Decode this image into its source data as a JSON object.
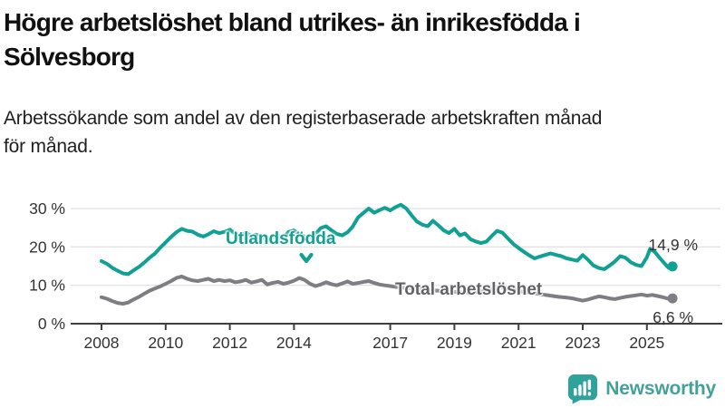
{
  "header": {
    "title_lines": [
      "Högre arbetslöshet bland utrikes- än inrikesfödda i",
      "Sölvesborg"
    ],
    "subtitle_lines": [
      "Arbetssökande som andel av den registerbaserade arbetskraften månad",
      "för månad."
    ]
  },
  "colors": {
    "foreign_line": "#11a094",
    "total_line": "#7d7d82",
    "total_label_text": "#616168",
    "grid": "#d9d9d9",
    "axis": "#3f3f3f",
    "axis_text": "#333333",
    "logo_teal": "#2fa29b"
  },
  "footer": {
    "brand": "Newsworthy"
  },
  "chart_data": {
    "type": "line",
    "title": "Högre arbetslöshet bland utrikes- än inrikesfödda i Sölvesborg",
    "subtitle": "Arbetssökande som andel av den registerbaserade arbetskraften månad för månad.",
    "xlabel": "",
    "ylabel": "",
    "grid": "horizontal",
    "legend_position": "inline-annotations",
    "x_axis": {
      "range": [
        2007.0,
        2027.3
      ],
      "ticks": [
        2008,
        2010,
        2012,
        2014,
        2017,
        2019,
        2021,
        2023,
        2025
      ],
      "labels": [
        "2008",
        "2010",
        "2012",
        "2014",
        "2017",
        "2019",
        "2021",
        "2023",
        "2025"
      ]
    },
    "y_axis": {
      "range": [
        0,
        32
      ],
      "ticks": [
        0,
        10,
        20,
        30
      ],
      "labels": [
        "0 %",
        "10 %",
        "20 %",
        "30 %"
      ]
    },
    "series": [
      {
        "name": "Utlandsfödda",
        "color": "#11a094",
        "end_value": 14.9,
        "end_label": "14,9 %",
        "points": [
          [
            2008.0,
            16.3
          ],
          [
            2008.17,
            15.6
          ],
          [
            2008.33,
            14.6
          ],
          [
            2008.5,
            13.8
          ],
          [
            2008.67,
            13.1
          ],
          [
            2008.83,
            12.9
          ],
          [
            2009.0,
            13.9
          ],
          [
            2009.17,
            14.8
          ],
          [
            2009.33,
            15.9
          ],
          [
            2009.5,
            17.2
          ],
          [
            2009.67,
            18.3
          ],
          [
            2009.83,
            19.8
          ],
          [
            2010.0,
            21.2
          ],
          [
            2010.17,
            22.6
          ],
          [
            2010.33,
            23.8
          ],
          [
            2010.5,
            24.7
          ],
          [
            2010.67,
            24.2
          ],
          [
            2010.83,
            24.0
          ],
          [
            2011.0,
            23.2
          ],
          [
            2011.17,
            22.7
          ],
          [
            2011.33,
            23.3
          ],
          [
            2011.5,
            24.1
          ],
          [
            2011.67,
            23.6
          ],
          [
            2011.83,
            23.9
          ],
          [
            2012.0,
            24.5
          ],
          [
            2012.17,
            23.4
          ],
          [
            2012.33,
            23.0
          ],
          [
            2012.5,
            23.7
          ],
          [
            2012.67,
            22.9
          ],
          [
            2012.83,
            23.2
          ],
          [
            2013.0,
            22.5
          ],
          [
            2013.17,
            22.1
          ],
          [
            2013.33,
            22.4
          ],
          [
            2013.5,
            22.9
          ],
          [
            2013.67,
            22.4
          ],
          [
            2013.83,
            23.9
          ],
          [
            2014.0,
            24.3
          ],
          [
            2014.17,
            23.3
          ],
          [
            2014.33,
            22.7
          ],
          [
            2014.5,
            22.4
          ],
          [
            2014.67,
            23.3
          ],
          [
            2014.83,
            24.9
          ],
          [
            2015.0,
            25.4
          ],
          [
            2015.17,
            24.3
          ],
          [
            2015.33,
            23.4
          ],
          [
            2015.5,
            23.0
          ],
          [
            2015.67,
            23.8
          ],
          [
            2015.83,
            25.3
          ],
          [
            2016.0,
            27.7
          ],
          [
            2016.17,
            28.9
          ],
          [
            2016.33,
            30.0
          ],
          [
            2016.5,
            28.9
          ],
          [
            2016.67,
            29.6
          ],
          [
            2016.83,
            30.2
          ],
          [
            2017.0,
            29.5
          ],
          [
            2017.17,
            30.4
          ],
          [
            2017.33,
            31.0
          ],
          [
            2017.5,
            30.0
          ],
          [
            2017.67,
            28.2
          ],
          [
            2017.83,
            26.6
          ],
          [
            2018.0,
            25.8
          ],
          [
            2018.17,
            25.4
          ],
          [
            2018.33,
            26.8
          ],
          [
            2018.5,
            25.6
          ],
          [
            2018.67,
            24.3
          ],
          [
            2018.83,
            23.6
          ],
          [
            2019.0,
            24.7
          ],
          [
            2019.17,
            23.0
          ],
          [
            2019.33,
            23.5
          ],
          [
            2019.5,
            22.0
          ],
          [
            2019.67,
            21.4
          ],
          [
            2019.83,
            21.0
          ],
          [
            2020.0,
            21.4
          ],
          [
            2020.17,
            22.9
          ],
          [
            2020.33,
            24.2
          ],
          [
            2020.5,
            23.7
          ],
          [
            2020.67,
            22.2
          ],
          [
            2020.83,
            20.8
          ],
          [
            2021.0,
            19.7
          ],
          [
            2021.17,
            18.7
          ],
          [
            2021.33,
            17.8
          ],
          [
            2021.5,
            17.0
          ],
          [
            2021.67,
            17.5
          ],
          [
            2021.83,
            17.9
          ],
          [
            2022.0,
            18.3
          ],
          [
            2022.17,
            17.9
          ],
          [
            2022.33,
            17.6
          ],
          [
            2022.5,
            17.0
          ],
          [
            2022.67,
            16.7
          ],
          [
            2022.83,
            16.4
          ],
          [
            2023.0,
            17.9
          ],
          [
            2023.17,
            16.6
          ],
          [
            2023.33,
            15.2
          ],
          [
            2023.5,
            14.5
          ],
          [
            2023.67,
            14.2
          ],
          [
            2023.83,
            15.1
          ],
          [
            2024.0,
            16.2
          ],
          [
            2024.17,
            17.6
          ],
          [
            2024.33,
            17.2
          ],
          [
            2024.5,
            16.0
          ],
          [
            2024.67,
            15.3
          ],
          [
            2024.83,
            15.0
          ],
          [
            2025.0,
            17.3
          ],
          [
            2025.1,
            19.5
          ],
          [
            2025.25,
            18.7
          ],
          [
            2025.4,
            17.1
          ],
          [
            2025.55,
            15.7
          ],
          [
            2025.67,
            14.6
          ],
          [
            2025.8,
            14.9
          ]
        ]
      },
      {
        "name": "Total arbetslöshet",
        "color": "#7d7d82",
        "end_value": 6.6,
        "end_label": "6,6 %",
        "points": [
          [
            2008.0,
            6.9
          ],
          [
            2008.17,
            6.5
          ],
          [
            2008.33,
            5.9
          ],
          [
            2008.5,
            5.4
          ],
          [
            2008.67,
            5.2
          ],
          [
            2008.83,
            5.5
          ],
          [
            2009.0,
            6.3
          ],
          [
            2009.17,
            7.0
          ],
          [
            2009.33,
            7.8
          ],
          [
            2009.5,
            8.6
          ],
          [
            2009.67,
            9.2
          ],
          [
            2009.83,
            9.7
          ],
          [
            2010.0,
            10.4
          ],
          [
            2010.17,
            11.1
          ],
          [
            2010.33,
            11.9
          ],
          [
            2010.5,
            12.3
          ],
          [
            2010.67,
            11.7
          ],
          [
            2010.83,
            11.3
          ],
          [
            2011.0,
            11.1
          ],
          [
            2011.17,
            11.4
          ],
          [
            2011.33,
            11.7
          ],
          [
            2011.5,
            11.1
          ],
          [
            2011.67,
            11.4
          ],
          [
            2011.83,
            11.1
          ],
          [
            2012.0,
            11.3
          ],
          [
            2012.17,
            10.8
          ],
          [
            2012.33,
            11.0
          ],
          [
            2012.5,
            11.4
          ],
          [
            2012.67,
            10.7
          ],
          [
            2012.83,
            11.0
          ],
          [
            2013.0,
            11.4
          ],
          [
            2013.17,
            10.2
          ],
          [
            2013.33,
            10.6
          ],
          [
            2013.5,
            10.9
          ],
          [
            2013.67,
            10.4
          ],
          [
            2013.83,
            10.7
          ],
          [
            2014.0,
            11.2
          ],
          [
            2014.17,
            11.9
          ],
          [
            2014.33,
            11.4
          ],
          [
            2014.5,
            10.4
          ],
          [
            2014.67,
            9.8
          ],
          [
            2014.83,
            10.2
          ],
          [
            2015.0,
            10.8
          ],
          [
            2015.17,
            10.3
          ],
          [
            2015.33,
            10.0
          ],
          [
            2015.5,
            10.5
          ],
          [
            2015.67,
            11.0
          ],
          [
            2015.83,
            10.4
          ],
          [
            2016.0,
            10.6
          ],
          [
            2016.17,
            10.9
          ],
          [
            2016.33,
            11.1
          ],
          [
            2016.5,
            10.6
          ],
          [
            2016.67,
            10.2
          ],
          [
            2016.83,
            10.0
          ],
          [
            2017.0,
            9.8
          ],
          [
            2017.25,
            9.5
          ],
          [
            2017.5,
            9.3
          ],
          [
            2017.75,
            9.1
          ],
          [
            2018.0,
            8.9
          ],
          [
            2018.25,
            8.7
          ],
          [
            2018.5,
            8.6
          ],
          [
            2018.75,
            8.4
          ],
          [
            2019.0,
            8.3
          ],
          [
            2019.25,
            8.2
          ],
          [
            2019.5,
            8.1
          ],
          [
            2019.75,
            8.3
          ],
          [
            2020.0,
            8.6
          ],
          [
            2020.25,
            9.2
          ],
          [
            2020.5,
            9.4
          ],
          [
            2020.75,
            9.0
          ],
          [
            2021.0,
            8.6
          ],
          [
            2021.25,
            8.2
          ],
          [
            2021.5,
            7.9
          ],
          [
            2021.75,
            7.6
          ],
          [
            2022.0,
            7.3
          ],
          [
            2022.25,
            7.0
          ],
          [
            2022.5,
            6.8
          ],
          [
            2022.67,
            6.6
          ],
          [
            2022.83,
            6.3
          ],
          [
            2023.0,
            6.0
          ],
          [
            2023.17,
            6.3
          ],
          [
            2023.33,
            6.7
          ],
          [
            2023.5,
            7.1
          ],
          [
            2023.67,
            6.9
          ],
          [
            2023.83,
            6.6
          ],
          [
            2024.0,
            6.4
          ],
          [
            2024.17,
            6.7
          ],
          [
            2024.33,
            7.0
          ],
          [
            2024.5,
            7.2
          ],
          [
            2024.67,
            7.4
          ],
          [
            2024.83,
            7.6
          ],
          [
            2025.0,
            7.3
          ],
          [
            2025.17,
            7.5
          ],
          [
            2025.33,
            7.2
          ],
          [
            2025.5,
            6.9
          ],
          [
            2025.67,
            6.5
          ],
          [
            2025.8,
            6.6
          ]
        ]
      }
    ]
  }
}
